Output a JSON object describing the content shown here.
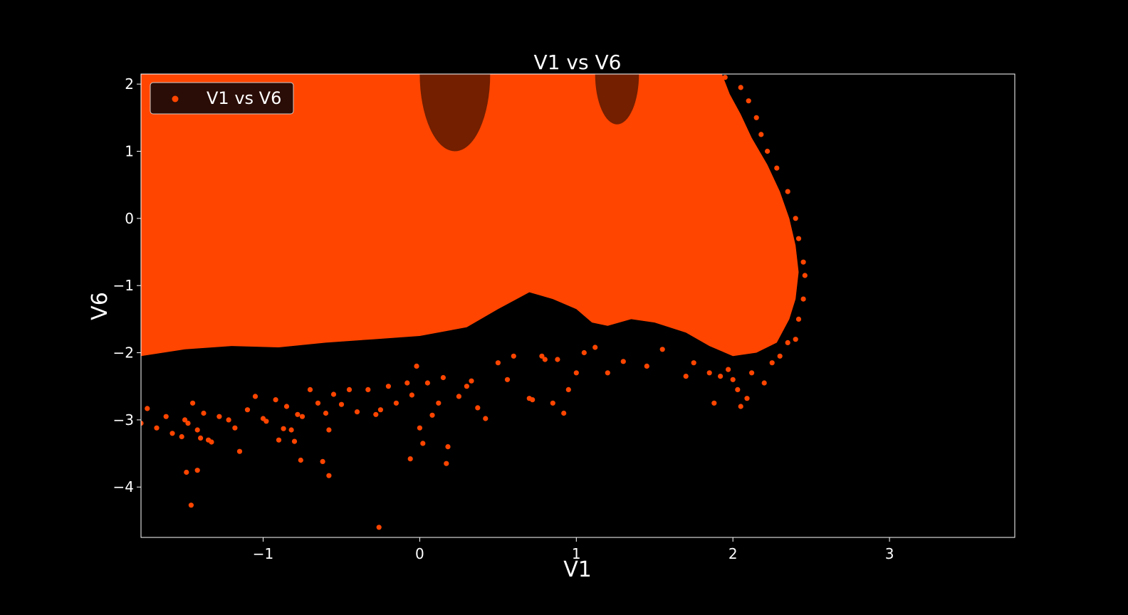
{
  "chart_data": {
    "type": "scatter",
    "title": "V1 vs V6",
    "xlabel": "V1",
    "ylabel": "V6",
    "xlim": [
      -1.78,
      3.8
    ],
    "ylim": [
      -4.75,
      2.15
    ],
    "x_ticks": [
      -1,
      0,
      1,
      2,
      3
    ],
    "x_tick_labels": [
      "−1",
      "0",
      "1",
      "2",
      "3"
    ],
    "y_ticks": [
      -4,
      -3,
      -2,
      -1,
      0,
      1,
      2
    ],
    "y_tick_labels": [
      "−4",
      "−3",
      "−2",
      "−1",
      "0",
      "1",
      "2"
    ],
    "legend_position": "top-left",
    "grid": false,
    "background_color": "#000000",
    "point_color": "#ff4500",
    "series": [
      {
        "name": "V1 vs V6",
        "points_note_x": [],
        "points": [
          [
            -1.78,
            -3.05
          ],
          [
            -1.74,
            -2.83
          ],
          [
            -1.68,
            -3.12
          ],
          [
            -1.62,
            -2.95
          ],
          [
            -1.58,
            -3.2
          ],
          [
            -1.52,
            -3.25
          ],
          [
            -1.5,
            -3.0
          ],
          [
            -1.48,
            -3.05
          ],
          [
            -1.45,
            -2.75
          ],
          [
            -1.42,
            -3.15
          ],
          [
            -1.4,
            -3.27
          ],
          [
            -1.38,
            -2.9
          ],
          [
            -1.35,
            -3.3
          ],
          [
            -1.33,
            -3.33
          ],
          [
            -1.28,
            -2.95
          ],
          [
            -1.22,
            -3.0
          ],
          [
            -1.18,
            -3.12
          ],
          [
            -1.15,
            -3.47
          ],
          [
            -1.1,
            -2.85
          ],
          [
            -1.05,
            -2.65
          ],
          [
            -1.0,
            -2.98
          ],
          [
            -0.98,
            -3.02
          ],
          [
            -0.92,
            -2.7
          ],
          [
            -0.9,
            -3.3
          ],
          [
            -0.87,
            -3.13
          ],
          [
            -0.85,
            -2.8
          ],
          [
            -0.82,
            -3.15
          ],
          [
            -0.8,
            -3.32
          ],
          [
            -0.78,
            -2.92
          ],
          [
            -0.76,
            -3.6
          ],
          [
            -0.75,
            -2.95
          ],
          [
            -0.7,
            -2.55
          ],
          [
            -0.65,
            -2.75
          ],
          [
            -0.62,
            -3.62
          ],
          [
            -0.6,
            -2.9
          ],
          [
            -0.58,
            -3.15
          ],
          [
            -0.55,
            -2.62
          ],
          [
            -0.5,
            -2.77
          ],
          [
            -0.45,
            -2.55
          ],
          [
            -0.4,
            -2.88
          ],
          [
            -0.33,
            -2.55
          ],
          [
            -0.28,
            -2.92
          ],
          [
            -0.25,
            -2.85
          ],
          [
            -0.2,
            -2.5
          ],
          [
            -0.15,
            -2.75
          ],
          [
            -0.08,
            -2.45
          ],
          [
            -0.05,
            -2.63
          ],
          [
            -0.02,
            -2.2
          ],
          [
            0.0,
            -3.12
          ],
          [
            0.02,
            -3.35
          ],
          [
            0.05,
            -2.45
          ],
          [
            0.08,
            -2.93
          ],
          [
            0.12,
            -2.75
          ],
          [
            0.15,
            -2.37
          ],
          [
            0.18,
            -3.4
          ],
          [
            0.25,
            -2.65
          ],
          [
            0.3,
            -2.5
          ],
          [
            0.33,
            -2.42
          ],
          [
            0.37,
            -2.82
          ],
          [
            0.42,
            -2.98
          ],
          [
            0.5,
            -2.15
          ],
          [
            0.56,
            -2.4
          ],
          [
            0.6,
            -2.05
          ],
          [
            0.7,
            -2.68
          ],
          [
            0.72,
            -2.7
          ],
          [
            0.78,
            -2.05
          ],
          [
            0.8,
            -2.1
          ],
          [
            0.85,
            -2.75
          ],
          [
            0.88,
            -2.1
          ],
          [
            0.92,
            -2.9
          ],
          [
            0.95,
            -2.55
          ],
          [
            1.0,
            -2.3
          ],
          [
            1.05,
            -2.0
          ],
          [
            1.12,
            -1.92
          ],
          [
            1.2,
            -2.3
          ],
          [
            1.3,
            -2.13
          ],
          [
            1.45,
            -2.2
          ],
          [
            1.55,
            -1.95
          ],
          [
            1.7,
            -2.35
          ],
          [
            1.75,
            -2.15
          ],
          [
            1.85,
            -2.3
          ],
          [
            1.88,
            -2.75
          ],
          [
            1.92,
            -2.35
          ],
          [
            1.97,
            -2.25
          ],
          [
            2.0,
            -2.4
          ],
          [
            2.03,
            -2.55
          ],
          [
            2.05,
            -2.8
          ],
          [
            2.09,
            -2.68
          ],
          [
            2.12,
            -2.3
          ],
          [
            2.2,
            -2.45
          ],
          [
            2.25,
            -2.15
          ],
          [
            2.3,
            -2.05
          ],
          [
            2.35,
            -1.85
          ],
          [
            2.4,
            -1.8
          ],
          [
            2.42,
            -1.5
          ],
          [
            2.45,
            -1.2
          ],
          [
            2.46,
            -0.85
          ],
          [
            2.45,
            -0.65
          ],
          [
            2.42,
            -0.3
          ],
          [
            2.4,
            0.0
          ],
          [
            2.35,
            0.4
          ],
          [
            2.28,
            0.75
          ],
          [
            2.22,
            1.0
          ],
          [
            2.18,
            1.25
          ],
          [
            2.15,
            1.5
          ],
          [
            2.1,
            1.75
          ],
          [
            2.05,
            1.95
          ],
          [
            1.95,
            2.1
          ],
          [
            -1.49,
            -3.78
          ],
          [
            -1.42,
            -3.75
          ],
          [
            -1.46,
            -4.27
          ],
          [
            -0.58,
            -3.83
          ],
          [
            -0.06,
            -3.58
          ],
          [
            0.17,
            -3.65
          ],
          [
            -0.26,
            -4.6
          ]
        ]
      }
    ]
  }
}
